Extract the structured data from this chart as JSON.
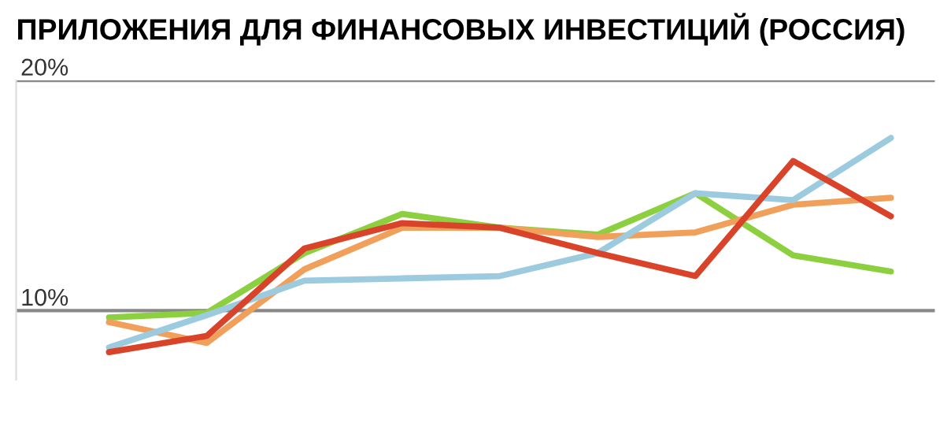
{
  "chart_data": {
    "type": "line",
    "title": "ПРИЛОЖЕНИЯ ДЛЯ ФИНАНСОВЫХ ИНВЕСТИЦИЙ (РОССИЯ)",
    "categories": [
      null,
      null,
      null,
      null,
      null,
      null,
      null,
      null,
      null
    ],
    "series": [
      {
        "color": "#8ccf3f",
        "values": [
          9.7,
          9.9,
          12.5,
          14.2,
          13.6,
          13.3,
          15.1,
          12.4,
          11.7
        ]
      },
      {
        "color": "#f0a05a",
        "values": [
          9.5,
          8.6,
          11.8,
          13.6,
          13.6,
          13.2,
          13.4,
          14.6,
          14.9
        ]
      },
      {
        "color": "#9ccbe0",
        "values": [
          8.4,
          9.8,
          11.3,
          11.4,
          11.5,
          12.5,
          15.1,
          14.8,
          17.5
        ]
      },
      {
        "color": "#d8432a",
        "values": [
          8.2,
          8.9,
          12.7,
          13.8,
          13.6,
          12.5,
          11.5,
          16.5,
          14.1
        ]
      }
    ],
    "ylim": [
      7,
      20
    ],
    "yticks": [
      {
        "value": 10,
        "label": "10%"
      },
      {
        "value": 20,
        "label": "20%"
      }
    ],
    "grid": "y",
    "tick_labels": "y",
    "legend": false,
    "marker": "none",
    "line_style": "solid"
  }
}
